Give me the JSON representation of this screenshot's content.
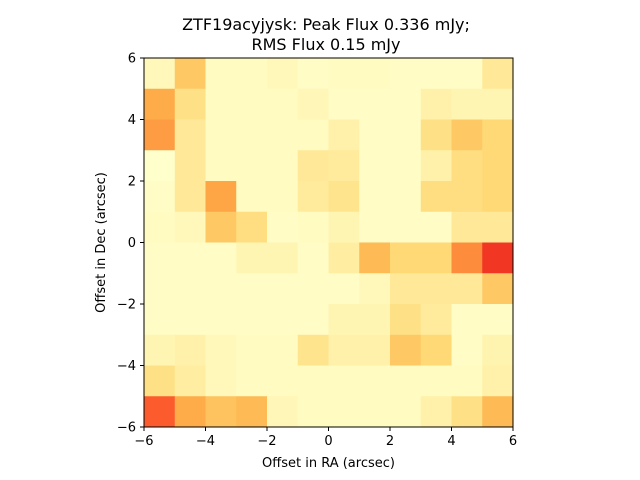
{
  "chart_data": {
    "type": "heatmap",
    "title_line1": "ZTF19acyjysk: Peak Flux 0.336 mJy;",
    "title_line2": "RMS Flux 0.15 mJy",
    "xlabel": "Offset in RA (arcsec)",
    "ylabel": "Offset in Dec (arcsec)",
    "xlim": [
      -6,
      6
    ],
    "ylim": [
      -6,
      6
    ],
    "xticks": [
      "−6",
      "−4",
      "−2",
      "0",
      "2",
      "4",
      "6"
    ],
    "yticks": [
      "−6",
      "−4",
      "−2",
      "0",
      "2",
      "4",
      "6"
    ],
    "colormap": "YlOrRd",
    "grid": false,
    "rows_top_to_bottom": [
      [
        0.05,
        0.3,
        0.03,
        0.03,
        0.05,
        0.02,
        0.03,
        0.03,
        0.02,
        0.02,
        0.02,
        0.15
      ],
      [
        0.4,
        0.2,
        0.03,
        0.03,
        0.03,
        0.06,
        0.02,
        0.02,
        0.02,
        0.1,
        0.07,
        0.07
      ],
      [
        0.45,
        0.15,
        0.03,
        0.03,
        0.03,
        0.03,
        0.1,
        0.02,
        0.02,
        0.2,
        0.3,
        0.25
      ],
      [
        0.0,
        0.15,
        0.03,
        0.03,
        0.03,
        0.15,
        0.14,
        0.02,
        0.02,
        0.1,
        0.22,
        0.25
      ],
      [
        0.02,
        0.15,
        0.42,
        0.03,
        0.03,
        0.14,
        0.18,
        0.02,
        0.02,
        0.22,
        0.22,
        0.25
      ],
      [
        0.03,
        0.05,
        0.3,
        0.22,
        0.02,
        0.03,
        0.07,
        0.02,
        0.02,
        0.02,
        0.15,
        0.15
      ],
      [
        0.02,
        0.02,
        0.02,
        0.07,
        0.07,
        0.02,
        0.12,
        0.35,
        0.25,
        0.25,
        0.5,
        0.68
      ],
      [
        0.02,
        0.02,
        0.02,
        0.02,
        0.02,
        0.02,
        0.02,
        0.05,
        0.15,
        0.15,
        0.15,
        0.3
      ],
      [
        0.02,
        0.02,
        0.02,
        0.02,
        0.02,
        0.02,
        0.07,
        0.07,
        0.2,
        0.14,
        0.02,
        0.02
      ],
      [
        0.07,
        0.1,
        0.05,
        0.03,
        0.03,
        0.18,
        0.1,
        0.1,
        0.3,
        0.25,
        0.02,
        0.08
      ],
      [
        0.2,
        0.12,
        0.05,
        0.03,
        0.03,
        0.03,
        0.03,
        0.03,
        0.03,
        0.03,
        0.03,
        0.1
      ],
      [
        0.6,
        0.4,
        0.32,
        0.35,
        0.06,
        0.03,
        0.03,
        0.03,
        0.03,
        0.1,
        0.2,
        0.35
      ]
    ]
  }
}
